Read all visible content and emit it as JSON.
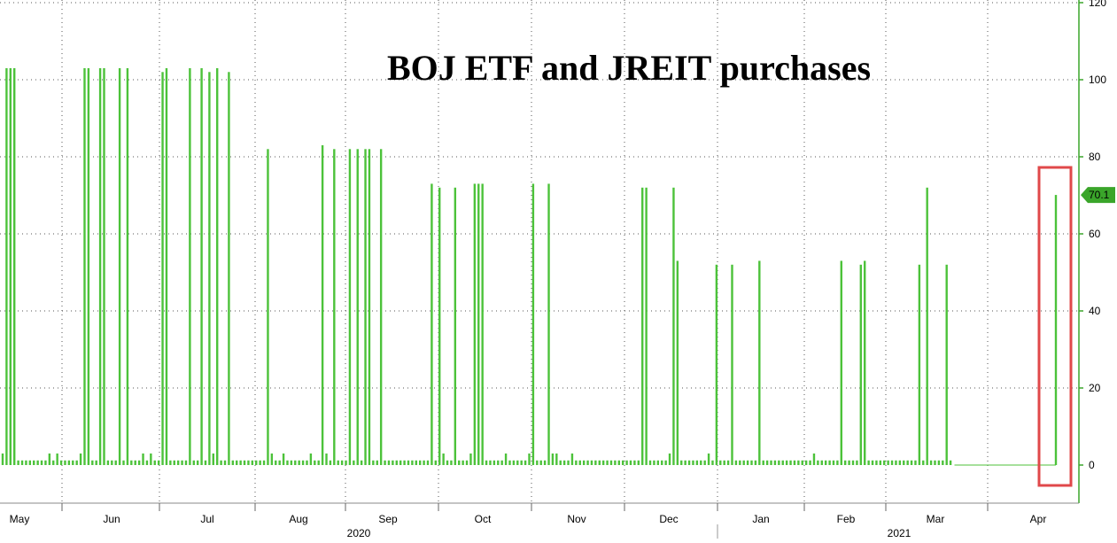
{
  "chart_data": {
    "type": "bar",
    "title": "BOJ ETF and JREIT purchases",
    "xlabel": "",
    "ylabel": "",
    "ylim": [
      -10,
      122
    ],
    "y_ticks": [
      0,
      20,
      40,
      60,
      80,
      100,
      120
    ],
    "grid": true,
    "y_axis_side": "right",
    "bar_color": "#4cc23a",
    "axis_color": "#3aa52a",
    "months": [
      "May",
      "Jun",
      "Jul",
      "Aug",
      "Sep",
      "Oct",
      "Nov",
      "Dec",
      "Jan",
      "Feb",
      "Mar",
      "Apr"
    ],
    "years": [
      "2020",
      "2021"
    ],
    "last_value_label": "70.1",
    "highlight_box_color": "#e0484a",
    "series": [
      {
        "values": [
          3,
          103,
          103,
          103,
          1.2,
          1.2,
          1.2,
          1.2,
          1.2,
          1.2,
          1.2,
          1.2,
          3,
          1.2,
          3,
          1.2,
          1.2,
          1.2,
          1.2,
          1.2,
          3,
          103,
          103,
          1.2,
          1.2,
          103,
          103,
          1.2,
          1.2,
          1.2,
          103,
          1.2,
          103,
          1.2,
          1.2,
          1.2,
          3,
          1.2,
          3,
          1.2,
          1.2,
          102,
          103,
          1.2,
          1.2,
          1.2,
          1.2,
          1.2,
          103,
          1.2,
          1.2,
          103,
          1.2,
          102,
          3,
          103,
          1.2,
          1.2,
          102,
          1.2,
          1.2,
          1.2,
          1.2,
          1.2,
          1.2,
          1.2,
          1.2,
          1.2,
          82,
          3,
          1.2,
          1.2,
          3,
          1.2,
          1.2,
          1.2,
          1.2,
          1.2,
          1.2,
          3,
          1.2,
          1.2,
          83,
          3,
          1.2,
          82,
          1.2,
          1.2,
          1.2,
          82,
          1.2,
          82,
          1.2,
          82,
          82,
          1.2,
          1.2,
          82,
          1.2,
          1.2,
          1.2,
          1.2,
          1.2,
          1.2,
          1.2,
          1.2,
          1.2,
          1.2,
          1.2,
          1.2,
          73,
          1.2,
          72,
          3,
          1.2,
          1.2,
          72,
          1.2,
          1.2,
          1.2,
          3,
          73,
          73,
          73,
          1.2,
          1.2,
          1.2,
          1.2,
          1.2,
          3,
          1.2,
          1.2,
          1.2,
          1.2,
          1.2,
          3,
          73,
          1.2,
          1.2,
          1.2,
          73,
          3,
          3,
          1.2,
          1.2,
          1.2,
          3,
          1.2,
          1.2,
          1.2,
          1.2,
          1.2,
          1.2,
          1.2,
          1.2,
          1.2,
          1.2,
          1.2,
          1.2,
          1.2,
          1.2,
          1.2,
          1.2,
          1.2,
          72,
          72,
          1.2,
          1.2,
          1.2,
          1.2,
          1.2,
          3,
          72,
          53,
          1.2,
          1.2,
          1.2,
          1.2,
          1.2,
          1.2,
          1.2,
          3,
          1.2,
          52,
          1.2,
          1.2,
          1.2,
          52,
          1.2,
          1.2,
          1.2,
          1.2,
          1.2,
          1.2,
          53,
          1.2,
          1.2,
          1.2,
          1.2,
          1.2,
          1.2,
          1.2,
          1.2,
          1.2,
          1.2,
          1.2,
          1.2,
          1.2,
          3,
          1.2,
          1.2,
          1.2,
          1.2,
          1.2,
          1.2,
          53,
          1.2,
          1.2,
          1.2,
          1.2,
          52,
          53,
          1.2,
          1.2,
          1.2,
          1.2,
          1.2,
          1.2,
          1.2,
          1.2,
          1.2,
          1.2,
          1.2,
          1.2,
          1.2,
          52,
          1.2,
          72,
          1.2,
          1.2,
          1.2,
          1.2,
          52,
          1.2,
          0,
          0,
          0,
          0,
          0,
          0,
          0,
          0,
          0,
          0,
          0,
          0,
          0,
          0,
          0,
          0,
          0,
          0,
          0,
          0,
          0,
          0,
          0,
          0,
          0,
          0,
          70.1
        ]
      }
    ]
  }
}
